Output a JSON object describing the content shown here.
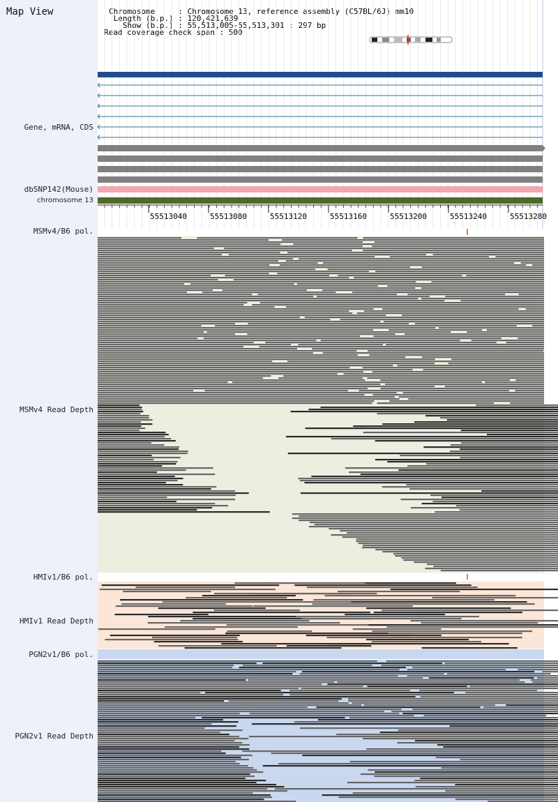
{
  "page": {
    "title": "Map View"
  },
  "header": {
    "chromosome_line": "Chromosome     : Chromosome 13, reference assembly (C57BL/6J) mm10",
    "length_line": " Length (b.p.) : 120,421,639",
    "show_line": "   Show (b.p.) : 55,513,005-55,513,301 : 297 bp",
    "coverage_line": "Read coverage check span : 500"
  },
  "tracks": {
    "gene_label": "Gene, mRNA, CDS",
    "dbsnp_label": "dbSNP142(Mouse)",
    "chrom_label": "chromosome 13",
    "msm_pol_label": "MSMv4/B6 pol.",
    "msm_depth_label": "MSMv4 Read Depth",
    "hmi_pol_label": "HMIv1/B6 pol.",
    "hmi_depth_label": "HMIv1 Read Depth",
    "pgn_pol_label": "PGN2v1/B6 pol.",
    "pgn_depth_label": "PGN2v1 Read Depth"
  },
  "ruler": {
    "ticks": [
      "55513040",
      "55513080",
      "55513120",
      "55513160",
      "55513200",
      "55513240",
      "55513280"
    ]
  },
  "colors": {
    "gene_main": "#1f4e8c",
    "gene_transcript": "#2e7b8c",
    "cds": "#808080",
    "dbsnp": "#f0a8ae",
    "chromosome": "#4f6a26",
    "msm_bg": "#eceee0",
    "hmi_bg": "#fbe6d8",
    "pgn_bg": "#c9d8ef",
    "read": "#666666",
    "read_dark": "#2a2a2a",
    "snp_mark": "#cc2222"
  }
}
